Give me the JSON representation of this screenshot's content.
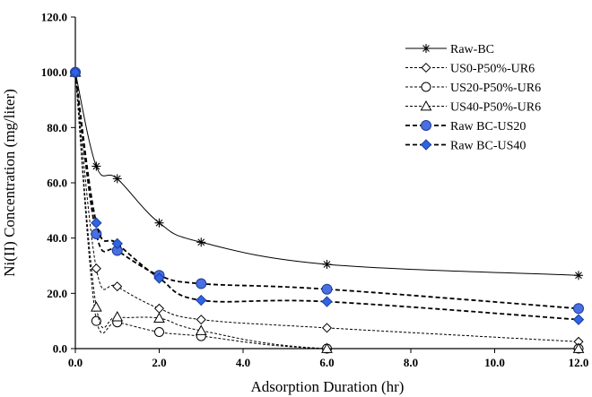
{
  "chart_data": {
    "type": "line",
    "title": "",
    "xlabel": "Adsorption Duration (hr)",
    "ylabel": "Ni(II) Concentration (mg/liter)",
    "xlim": [
      0,
      12
    ],
    "ylim": [
      0,
      120
    ],
    "x_ticks": [
      0,
      2,
      4,
      6,
      8,
      10,
      12
    ],
    "y_ticks": [
      0,
      20,
      40,
      60,
      80,
      100,
      120
    ],
    "x_tick_labels": [
      "0.0",
      "2.0",
      "4.0",
      "6.0",
      "8.0",
      "10.0",
      "12.0"
    ],
    "y_tick_labels": [
      "0.0",
      "20.0",
      "40.0",
      "60.0",
      "80.0",
      "100.0",
      "120.0"
    ],
    "grid": false,
    "legend_position": "top-right",
    "series": [
      {
        "name": "Raw-BC",
        "marker": "asterisk",
        "line": "solid",
        "color": "#000000",
        "x": [
          0,
          0.5,
          1,
          2,
          3,
          6,
          12
        ],
        "y": [
          100,
          66,
          61.5,
          45.5,
          38.5,
          30.5,
          26.5
        ]
      },
      {
        "name": "US0-P50%-UR6",
        "marker": "diamond-open",
        "line": "dashed",
        "color": "#000000",
        "x": [
          0,
          0.5,
          1,
          2,
          3,
          6,
          12
        ],
        "y": [
          100,
          29,
          22.5,
          14.5,
          10.5,
          7.5,
          2.5
        ]
      },
      {
        "name": "US20-P50%-UR6",
        "marker": "circle-open",
        "line": "dashed",
        "color": "#000000",
        "x": [
          0,
          0.5,
          1,
          2,
          3,
          6,
          12
        ],
        "y": [
          100,
          10,
          9.5,
          6,
          4.5,
          0,
          0
        ]
      },
      {
        "name": "US40-P50%-UR6",
        "marker": "triangle-open",
        "line": "dashed",
        "color": "#000000",
        "x": [
          0,
          0.5,
          1,
          2,
          3,
          6,
          12
        ],
        "y": [
          100,
          15,
          11.5,
          11,
          6.5,
          0,
          0
        ]
      },
      {
        "name": "Raw BC-US20",
        "marker": "circle-filled",
        "line": "dashed-bold",
        "color": "#4a6fe0",
        "x": [
          0,
          0.5,
          1,
          2,
          3,
          6,
          12
        ],
        "y": [
          100,
          41.5,
          35.5,
          26.5,
          23.5,
          21.5,
          14.5
        ]
      },
      {
        "name": "Raw BC-US40",
        "marker": "diamond-filled",
        "line": "dashed-bold",
        "color": "#2e64e6",
        "x": [
          0,
          0.5,
          1,
          2,
          3,
          6,
          12
        ],
        "y": [
          100,
          45.5,
          38,
          25.5,
          17.5,
          17,
          10.5
        ]
      }
    ]
  }
}
